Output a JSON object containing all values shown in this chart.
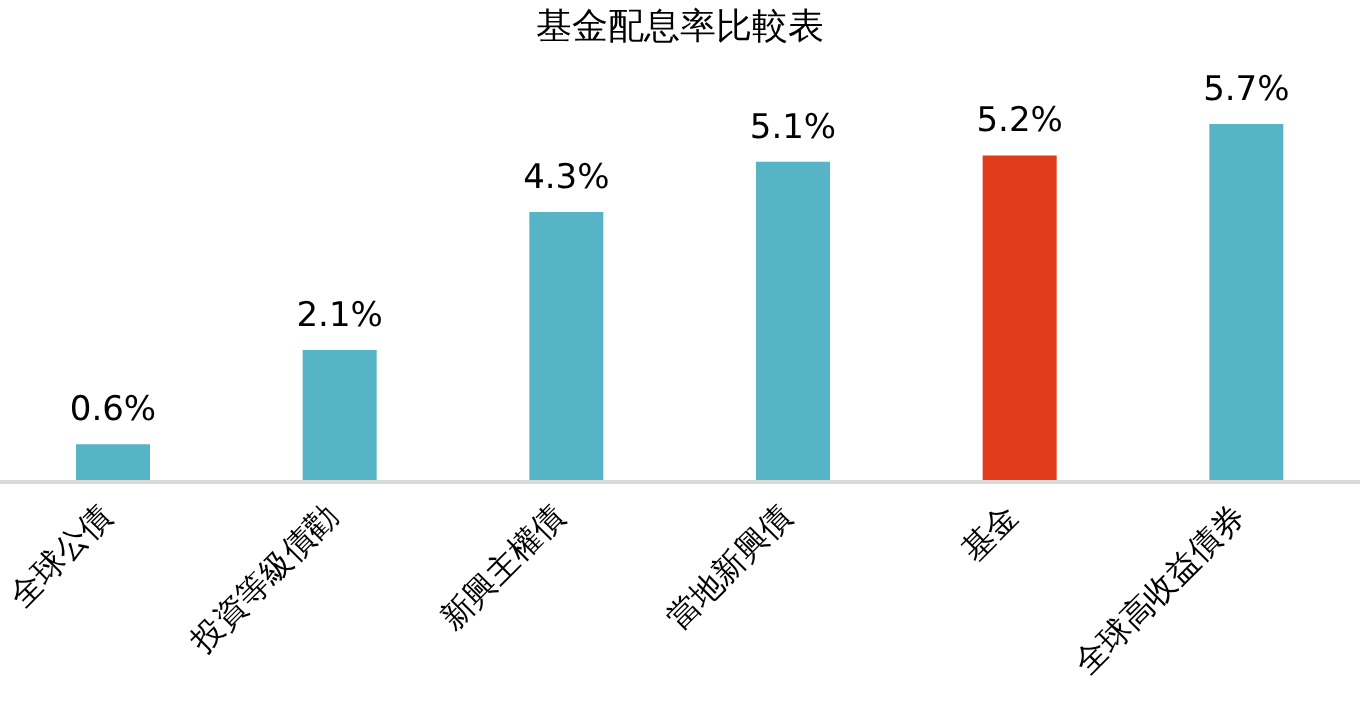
{
  "chart_data": {
    "type": "bar",
    "title": "基金配息率比較表",
    "categories": [
      "全球公債",
      "投資等級債勸",
      "新興主權債",
      "當地新興債",
      "基金",
      "全球高收益債券"
    ],
    "values": [
      0.6,
      2.1,
      4.3,
      5.1,
      5.2,
      5.7
    ],
    "colors": [
      "#56b4c6",
      "#56b4c6",
      "#56b4c6",
      "#56b4c6",
      "#e03c1c",
      "#56b4c6"
    ],
    "value_labels": [
      "0.6%",
      "2.1%",
      "4.3%",
      "5.1%",
      "5.2%",
      "5.7%"
    ],
    "grid": false,
    "legend": false
  }
}
